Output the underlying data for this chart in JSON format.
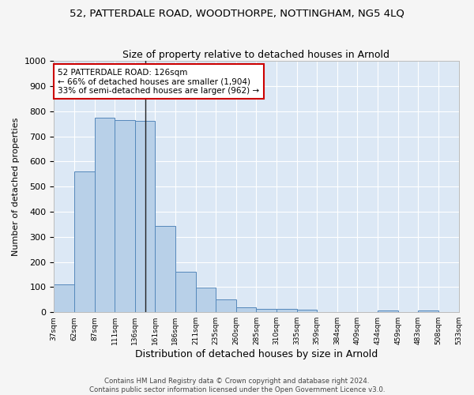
{
  "title": "52, PATTERDALE ROAD, WOODTHORPE, NOTTINGHAM, NG5 4LQ",
  "subtitle": "Size of property relative to detached houses in Arnold",
  "xlabel": "Distribution of detached houses by size in Arnold",
  "ylabel": "Number of detached properties",
  "bar_values": [
    110,
    560,
    775,
    765,
    760,
    343,
    162,
    98,
    52,
    20,
    14,
    14,
    10,
    0,
    0,
    0,
    8,
    0,
    8,
    0
  ],
  "bin_labels": [
    "37sqm",
    "62sqm",
    "87sqm",
    "111sqm",
    "136sqm",
    "161sqm",
    "186sqm",
    "211sqm",
    "235sqm",
    "260sqm",
    "285sqm",
    "310sqm",
    "335sqm",
    "359sqm",
    "384sqm",
    "409sqm",
    "434sqm",
    "459sqm",
    "483sqm",
    "508sqm",
    "533sqm"
  ],
  "bar_color": "#b8d0e8",
  "bar_edge_color": "#5588bb",
  "highlight_bar_index": 4,
  "annotation_text": "52 PATTERDALE ROAD: 126sqm\n← 66% of detached houses are smaller (1,904)\n33% of semi-detached houses are larger (962) →",
  "annotation_box_color": "#ffffff",
  "annotation_box_edge_color": "#cc0000",
  "vline_color": "#222222",
  "ylim": [
    0,
    1000
  ],
  "yticks": [
    0,
    100,
    200,
    300,
    400,
    500,
    600,
    700,
    800,
    900,
    1000
  ],
  "footer_line1": "Contains HM Land Registry data © Crown copyright and database right 2024.",
  "footer_line2": "Contains public sector information licensed under the Open Government Licence v3.0.",
  "fig_bg_color": "#f5f5f5",
  "ax_bg_color": "#dce8f5",
  "title_fontsize": 9.5,
  "subtitle_fontsize": 9,
  "annotation_fontsize": 7.5,
  "ylabel_fontsize": 8,
  "xlabel_fontsize": 9
}
